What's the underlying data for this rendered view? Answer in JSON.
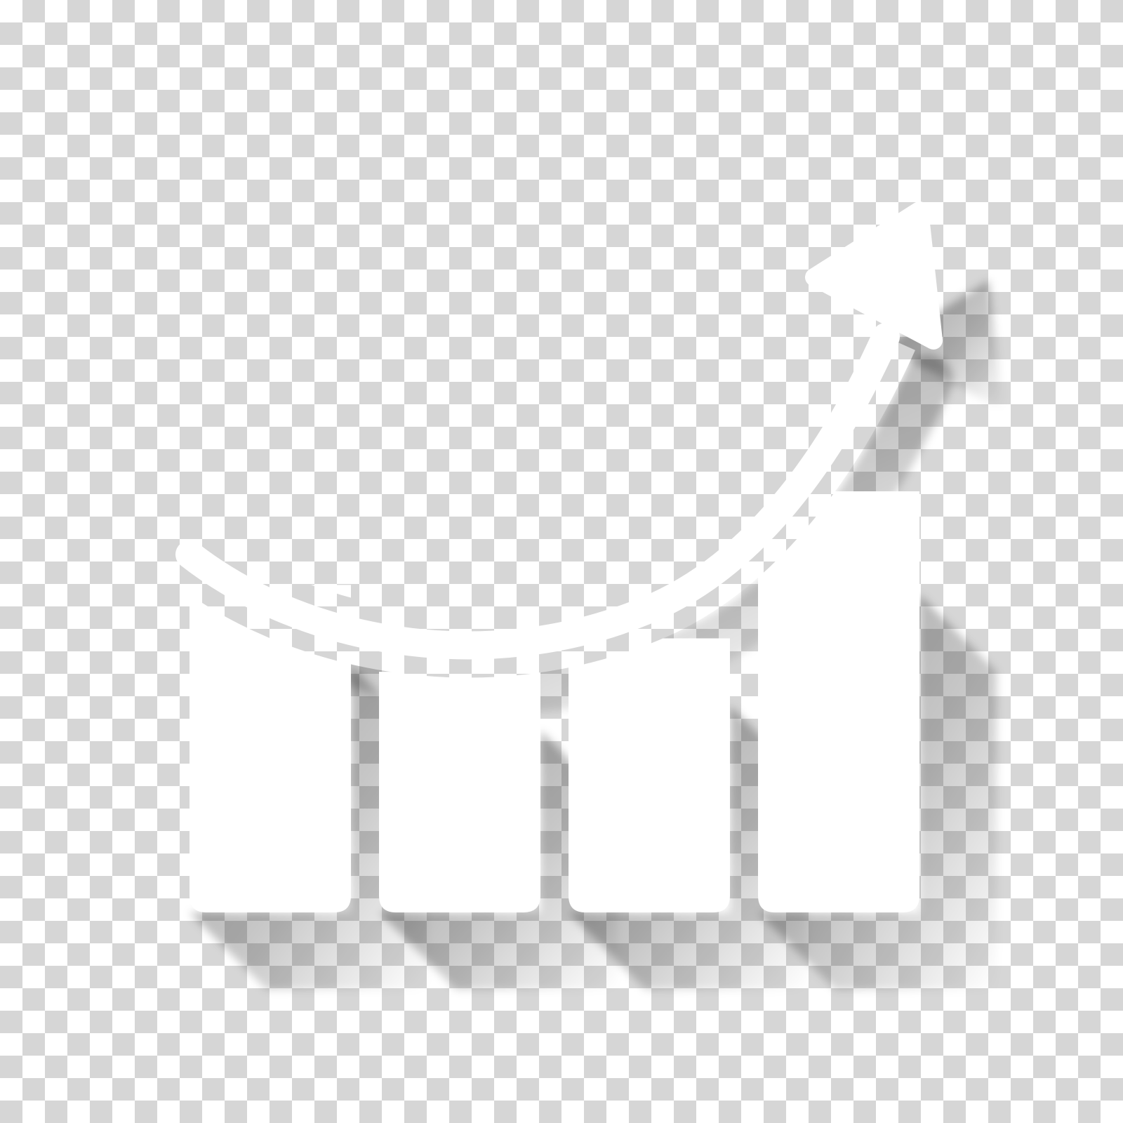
{
  "background": {
    "pattern": "transparency-checkerboard",
    "light_color": "#ffffff",
    "dark_color": "#d6d6d6"
  },
  "icon": {
    "name": "growth-bar-chart-with-arrow",
    "fill_color": "#ffffff",
    "shadow_color": "#000000",
    "shadow_style": "long-shadow",
    "bars": [
      {
        "name": "bar-1",
        "level": 0.49
      },
      {
        "name": "bar-2",
        "level": 0.36
      },
      {
        "name": "bar-3",
        "level": 0.41
      },
      {
        "name": "bar-4",
        "level": 0.63
      }
    ],
    "arrow_direction": "up-right"
  }
}
